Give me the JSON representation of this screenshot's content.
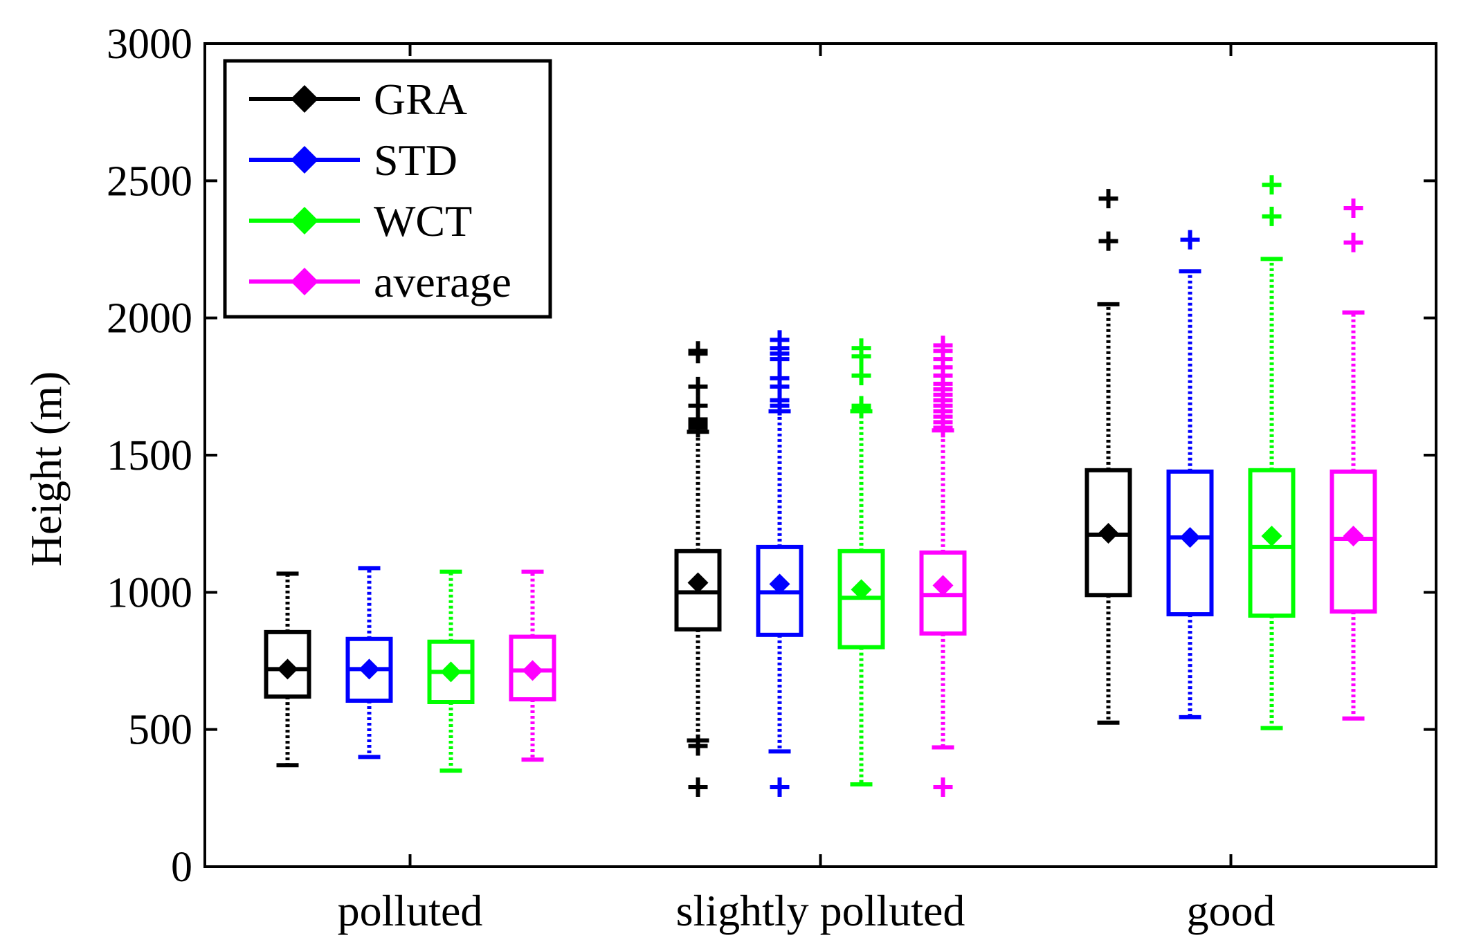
{
  "chart_data": {
    "type": "boxplot",
    "title": "",
    "xlabel": "",
    "ylabel": "Height (m)",
    "ylim": [
      0,
      3000
    ],
    "yticks": [
      0,
      500,
      1000,
      1500,
      2000,
      2500,
      3000
    ],
    "ytick_labels": [
      "0",
      "500",
      "1000",
      "1500",
      "2000",
      "2500",
      "3000"
    ],
    "categories": [
      "polluted",
      "slightly polluted",
      "good"
    ],
    "legend": {
      "position": "top-left",
      "marker": "diamond"
    },
    "series": [
      {
        "name": "GRA",
        "color": "#000000",
        "boxes": [
          {
            "q1": 620,
            "median": 720,
            "q3": 855,
            "mean": 720,
            "whisker_low": 370,
            "whisker_high": 1068,
            "outliers": []
          },
          {
            "q1": 865,
            "median": 1000,
            "q3": 1150,
            "mean": 1035,
            "whisker_low": 460,
            "whisker_high": 1585,
            "outliers": [
              1600,
              1610,
              1620,
              1630,
              1680,
              1750,
              1870,
              1880,
              440,
              290
            ]
          },
          {
            "q1": 990,
            "median": 1210,
            "q3": 1445,
            "mean": 1215,
            "whisker_low": 525,
            "whisker_high": 2050,
            "outliers": [
              2280,
              2435
            ]
          }
        ]
      },
      {
        "name": "STD",
        "color": "#0000ff",
        "boxes": [
          {
            "q1": 605,
            "median": 720,
            "q3": 830,
            "mean": 720,
            "whisker_low": 400,
            "whisker_high": 1088,
            "outliers": []
          },
          {
            "q1": 845,
            "median": 1000,
            "q3": 1165,
            "mean": 1030,
            "whisker_low": 420,
            "whisker_high": 1660,
            "outliers": [
              1680,
              1700,
              1750,
              1780,
              1850,
              1870,
              1890,
              1920,
              290
            ]
          },
          {
            "q1": 920,
            "median": 1200,
            "q3": 1440,
            "mean": 1200,
            "whisker_low": 545,
            "whisker_high": 2170,
            "outliers": [
              2285
            ]
          }
        ]
      },
      {
        "name": "WCT",
        "color": "#00ff00",
        "boxes": [
          {
            "q1": 600,
            "median": 710,
            "q3": 820,
            "mean": 710,
            "whisker_low": 350,
            "whisker_high": 1075,
            "outliers": []
          },
          {
            "q1": 800,
            "median": 980,
            "q3": 1150,
            "mean": 1010,
            "whisker_low": 300,
            "whisker_high": 1660,
            "outliers": [
              1670,
              1680,
              1790,
              1860,
              1890
            ]
          },
          {
            "q1": 915,
            "median": 1165,
            "q3": 1445,
            "mean": 1205,
            "whisker_low": 505,
            "whisker_high": 2215,
            "outliers": [
              2370,
              2485
            ]
          }
        ]
      },
      {
        "name": "average",
        "color": "#ff00ff",
        "boxes": [
          {
            "q1": 610,
            "median": 715,
            "q3": 838,
            "mean": 715,
            "whisker_low": 390,
            "whisker_high": 1075,
            "outliers": []
          },
          {
            "q1": 850,
            "median": 990,
            "q3": 1145,
            "mean": 1025,
            "whisker_low": 435,
            "whisker_high": 1590,
            "outliers": [
              1600,
              1620,
              1640,
              1660,
              1680,
              1700,
              1720,
              1740,
              1760,
              1790,
              1820,
              1850,
              1880,
              1900,
              290
            ]
          },
          {
            "q1": 930,
            "median": 1195,
            "q3": 1440,
            "mean": 1205,
            "whisker_low": 540,
            "whisker_high": 2020,
            "outliers": [
              2275,
              2400
            ]
          }
        ]
      }
    ]
  }
}
